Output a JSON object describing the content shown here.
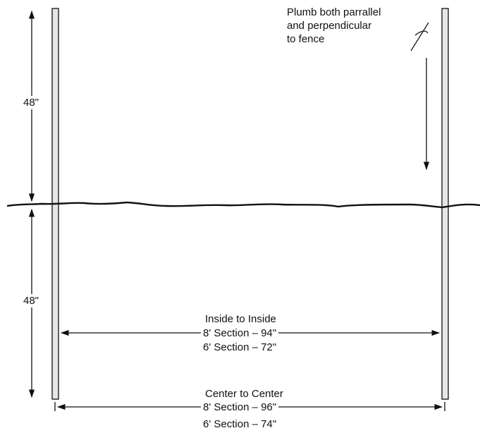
{
  "labels": {
    "height_above": "48\"",
    "height_below": "48\"",
    "plumb_note": [
      "Plumb both parrallel",
      "and perpendicular",
      "to fence"
    ],
    "inside_to_inside": {
      "title": "Inside to Inside",
      "line1": "8' Section – 94\"",
      "line2": "6' Section – 72\""
    },
    "center_to_center": {
      "title": "Center to Center",
      "line1": "8' Section – 96\"",
      "line2": "6' Section – 74\""
    }
  },
  "colors": {
    "ink": "#111111",
    "post_fill": "#e6e6e6",
    "background": "#ffffff"
  }
}
